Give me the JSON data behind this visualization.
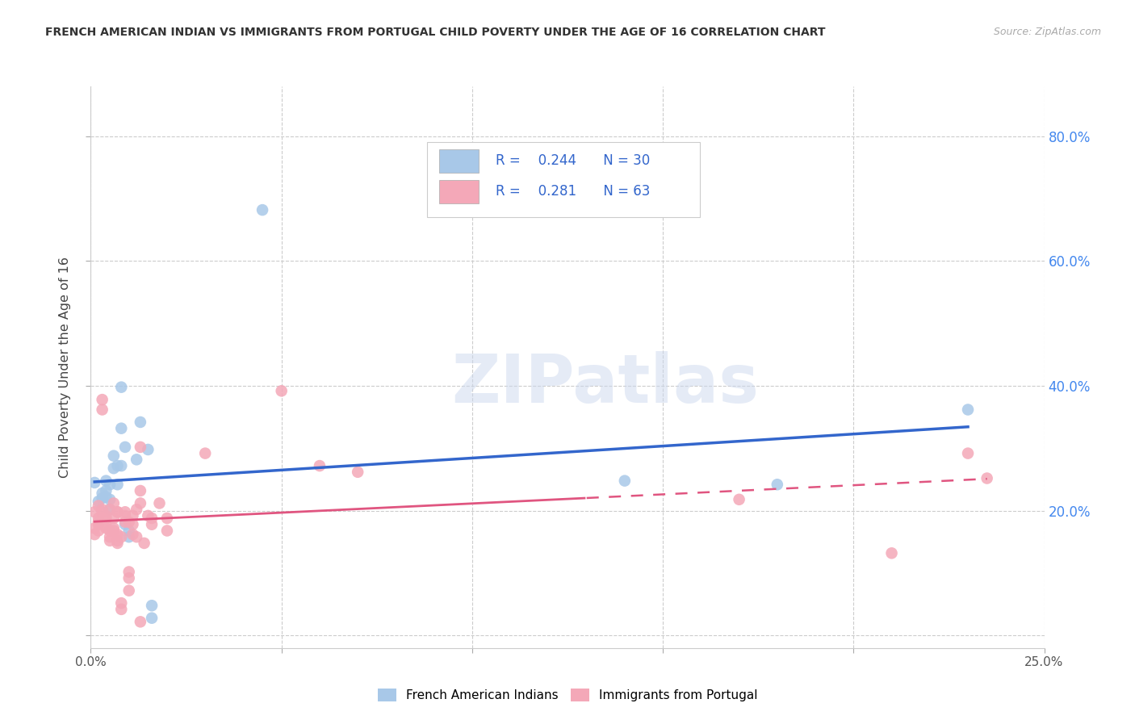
{
  "title": "FRENCH AMERICAN INDIAN VS IMMIGRANTS FROM PORTUGAL CHILD POVERTY UNDER THE AGE OF 16 CORRELATION CHART",
  "source": "Source: ZipAtlas.com",
  "ylabel": "Child Poverty Under the Age of 16",
  "xlim": [
    0.0,
    0.25
  ],
  "ylim": [
    -0.02,
    0.88
  ],
  "yticks": [
    0.0,
    0.2,
    0.4,
    0.6,
    0.8
  ],
  "ytick_labels": [
    "",
    "20.0%",
    "40.0%",
    "60.0%",
    "80.0%"
  ],
  "xticks": [
    0.0,
    0.05,
    0.1,
    0.15,
    0.2,
    0.25
  ],
  "xtick_labels": [
    "0.0%",
    "",
    "",
    "",
    "",
    "25.0%"
  ],
  "grid_color": "#cccccc",
  "watermark": "ZIPatlas",
  "legend_label_blue": "French American Indians",
  "legend_label_pink": "Immigrants from Portugal",
  "R_blue": 0.244,
  "N_blue": 30,
  "R_pink": 0.281,
  "N_pink": 63,
  "blue_color": "#a8c8e8",
  "pink_color": "#f4a8b8",
  "blue_line_color": "#3366cc",
  "pink_line_color": "#e05580",
  "legend_text_color": "#3366cc",
  "blue_scatter": [
    [
      0.001,
      0.245
    ],
    [
      0.002,
      0.215
    ],
    [
      0.003,
      0.22
    ],
    [
      0.003,
      0.228
    ],
    [
      0.004,
      0.232
    ],
    [
      0.004,
      0.248
    ],
    [
      0.004,
      0.222
    ],
    [
      0.005,
      0.242
    ],
    [
      0.005,
      0.202
    ],
    [
      0.005,
      0.218
    ],
    [
      0.006,
      0.288
    ],
    [
      0.006,
      0.268
    ],
    [
      0.007,
      0.272
    ],
    [
      0.007,
      0.242
    ],
    [
      0.008,
      0.398
    ],
    [
      0.008,
      0.332
    ],
    [
      0.008,
      0.272
    ],
    [
      0.009,
      0.302
    ],
    [
      0.009,
      0.178
    ],
    [
      0.01,
      0.158
    ],
    [
      0.01,
      0.168
    ],
    [
      0.012,
      0.282
    ],
    [
      0.013,
      0.342
    ],
    [
      0.015,
      0.298
    ],
    [
      0.016,
      0.028
    ],
    [
      0.016,
      0.048
    ],
    [
      0.045,
      0.682
    ],
    [
      0.14,
      0.248
    ],
    [
      0.18,
      0.242
    ],
    [
      0.23,
      0.362
    ]
  ],
  "pink_scatter": [
    [
      0.001,
      0.162
    ],
    [
      0.001,
      0.172
    ],
    [
      0.001,
      0.198
    ],
    [
      0.002,
      0.208
    ],
    [
      0.002,
      0.178
    ],
    [
      0.002,
      0.182
    ],
    [
      0.002,
      0.168
    ],
    [
      0.002,
      0.188
    ],
    [
      0.003,
      0.198
    ],
    [
      0.003,
      0.202
    ],
    [
      0.003,
      0.362
    ],
    [
      0.003,
      0.378
    ],
    [
      0.004,
      0.188
    ],
    [
      0.004,
      0.172
    ],
    [
      0.004,
      0.178
    ],
    [
      0.004,
      0.192
    ],
    [
      0.005,
      0.202
    ],
    [
      0.005,
      0.152
    ],
    [
      0.005,
      0.168
    ],
    [
      0.005,
      0.158
    ],
    [
      0.006,
      0.212
    ],
    [
      0.006,
      0.172
    ],
    [
      0.006,
      0.188
    ],
    [
      0.006,
      0.168
    ],
    [
      0.007,
      0.198
    ],
    [
      0.007,
      0.198
    ],
    [
      0.007,
      0.162
    ],
    [
      0.007,
      0.148
    ],
    [
      0.007,
      0.152
    ],
    [
      0.008,
      0.158
    ],
    [
      0.008,
      0.052
    ],
    [
      0.008,
      0.042
    ],
    [
      0.009,
      0.198
    ],
    [
      0.009,
      0.192
    ],
    [
      0.009,
      0.182
    ],
    [
      0.01,
      0.092
    ],
    [
      0.01,
      0.072
    ],
    [
      0.01,
      0.102
    ],
    [
      0.01,
      0.182
    ],
    [
      0.011,
      0.178
    ],
    [
      0.011,
      0.162
    ],
    [
      0.011,
      0.192
    ],
    [
      0.012,
      0.158
    ],
    [
      0.012,
      0.202
    ],
    [
      0.013,
      0.232
    ],
    [
      0.013,
      0.212
    ],
    [
      0.013,
      0.302
    ],
    [
      0.013,
      0.022
    ],
    [
      0.014,
      0.148
    ],
    [
      0.015,
      0.192
    ],
    [
      0.016,
      0.188
    ],
    [
      0.016,
      0.178
    ],
    [
      0.018,
      0.212
    ],
    [
      0.02,
      0.188
    ],
    [
      0.02,
      0.168
    ],
    [
      0.03,
      0.292
    ],
    [
      0.05,
      0.392
    ],
    [
      0.06,
      0.272
    ],
    [
      0.07,
      0.262
    ],
    [
      0.17,
      0.218
    ],
    [
      0.21,
      0.132
    ],
    [
      0.23,
      0.292
    ],
    [
      0.235,
      0.252
    ]
  ]
}
